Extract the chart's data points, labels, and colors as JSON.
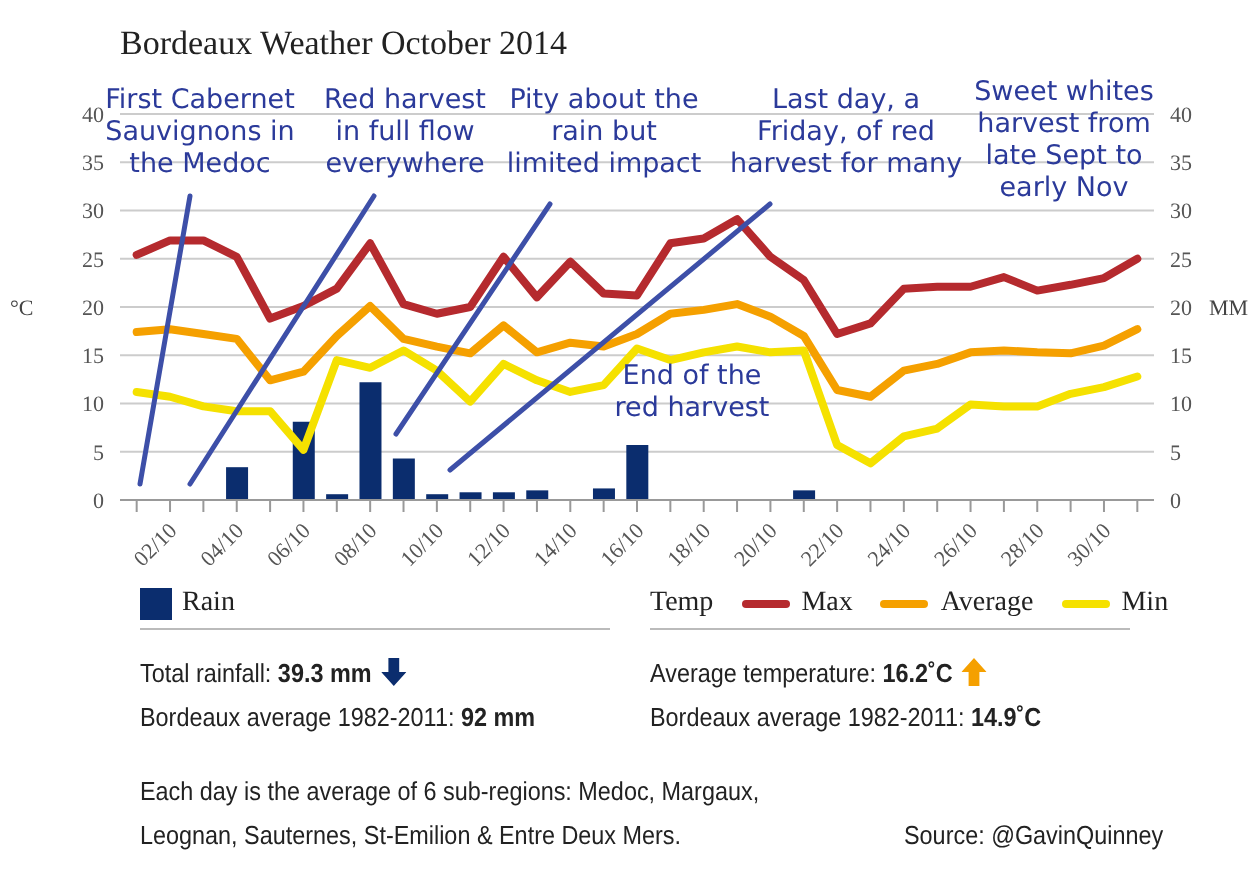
{
  "chart_data": {
    "type": "bar",
    "title": "Bordeaux Weather October 2014",
    "categories": [
      null,
      "02/10",
      null,
      "04/10",
      null,
      "06/10",
      null,
      "08/10",
      null,
      "10/10",
      null,
      "12/10",
      null,
      "14/10",
      null,
      "16/10",
      null,
      "18/10",
      null,
      "20/10",
      null,
      "22/10",
      null,
      "24/10",
      null,
      "26/10",
      null,
      "28/10",
      null,
      "30/10",
      null
    ],
    "series": [
      {
        "name": "Rain",
        "axis": "y2",
        "color": "#0b2d6e",
        "values": [
          0,
          0,
          0,
          3.4,
          0,
          8.1,
          0.6,
          12.2,
          4.3,
          0.6,
          0.8,
          0.8,
          1.0,
          0,
          1.2,
          5.7,
          0,
          0,
          0,
          0,
          1.0,
          0,
          0,
          0,
          0,
          0,
          0,
          0,
          0,
          0,
          0
        ]
      },
      {
        "name": "Max",
        "type": "line",
        "color": "#b52a2e",
        "values": [
          25.4,
          26.9,
          26.9,
          25.2,
          18.8,
          20.1,
          21.9,
          26.6,
          20.3,
          19.3,
          20.0,
          25.2,
          21.0,
          24.7,
          21.4,
          21.2,
          26.6,
          27.1,
          29.1,
          25.2,
          22.8,
          17.2,
          18.3,
          21.9,
          22.1,
          22.1,
          23.1,
          21.7,
          22.3,
          23.0,
          25.0
        ]
      },
      {
        "name": "Average",
        "type": "line",
        "color": "#f5a000",
        "values": [
          17.4,
          17.7,
          17.2,
          16.7,
          12.4,
          13.3,
          17.0,
          20.1,
          16.7,
          15.9,
          15.2,
          18.1,
          15.3,
          16.3,
          15.9,
          17.2,
          19.3,
          19.7,
          20.3,
          19.0,
          17.0,
          11.4,
          10.7,
          13.4,
          14.1,
          15.3,
          15.5,
          15.3,
          15.2,
          16.0,
          17.7
        ]
      },
      {
        "name": "Min",
        "type": "line",
        "color": "#f5e100",
        "values": [
          11.2,
          10.7,
          9.7,
          9.2,
          9.2,
          5.2,
          14.5,
          13.7,
          15.5,
          13.4,
          10.2,
          14.1,
          12.4,
          11.2,
          11.9,
          15.7,
          14.5,
          15.3,
          15.9,
          15.3,
          15.5,
          5.7,
          3.8,
          6.6,
          7.4,
          9.9,
          9.7,
          9.7,
          11.0,
          11.7,
          12.8
        ]
      }
    ],
    "ylabel": "°C",
    "y2label": "MM",
    "ylim": [
      0,
      40
    ],
    "yticks": [
      0,
      5,
      10,
      15,
      20,
      25,
      30,
      35,
      40
    ],
    "y2lim": [
      0,
      40
    ],
    "y2ticks": [
      0,
      5,
      10,
      15,
      20,
      25,
      30,
      35,
      40
    ],
    "grid": "y",
    "legend": "bottom",
    "legend_title": "Temp",
    "line_style": "solid",
    "annotations": [
      "First Cabernet Sauvignons in the Medoc",
      "Red harvest in full flow everywhere",
      "Pity about the rain but limited impact",
      "Last day, a Friday, of red harvest for many",
      "Sweet whites harvest from late Sept to early Nov",
      "End of the red harvest",
      "Total rainfall: 39.3 mm",
      "Bordeaux average 1982-2011: 92 mm",
      "Average temperature: 16.2˚C",
      "Bordeaux average 1982-2011: 14.9˚C",
      "Each day is the average of 6 sub-regions: Medoc, Margaux, Leognan, Sauternes, St-Emilion & Entre Deux Mers.",
      "Source: @GavinQuinney"
    ]
  }
}
